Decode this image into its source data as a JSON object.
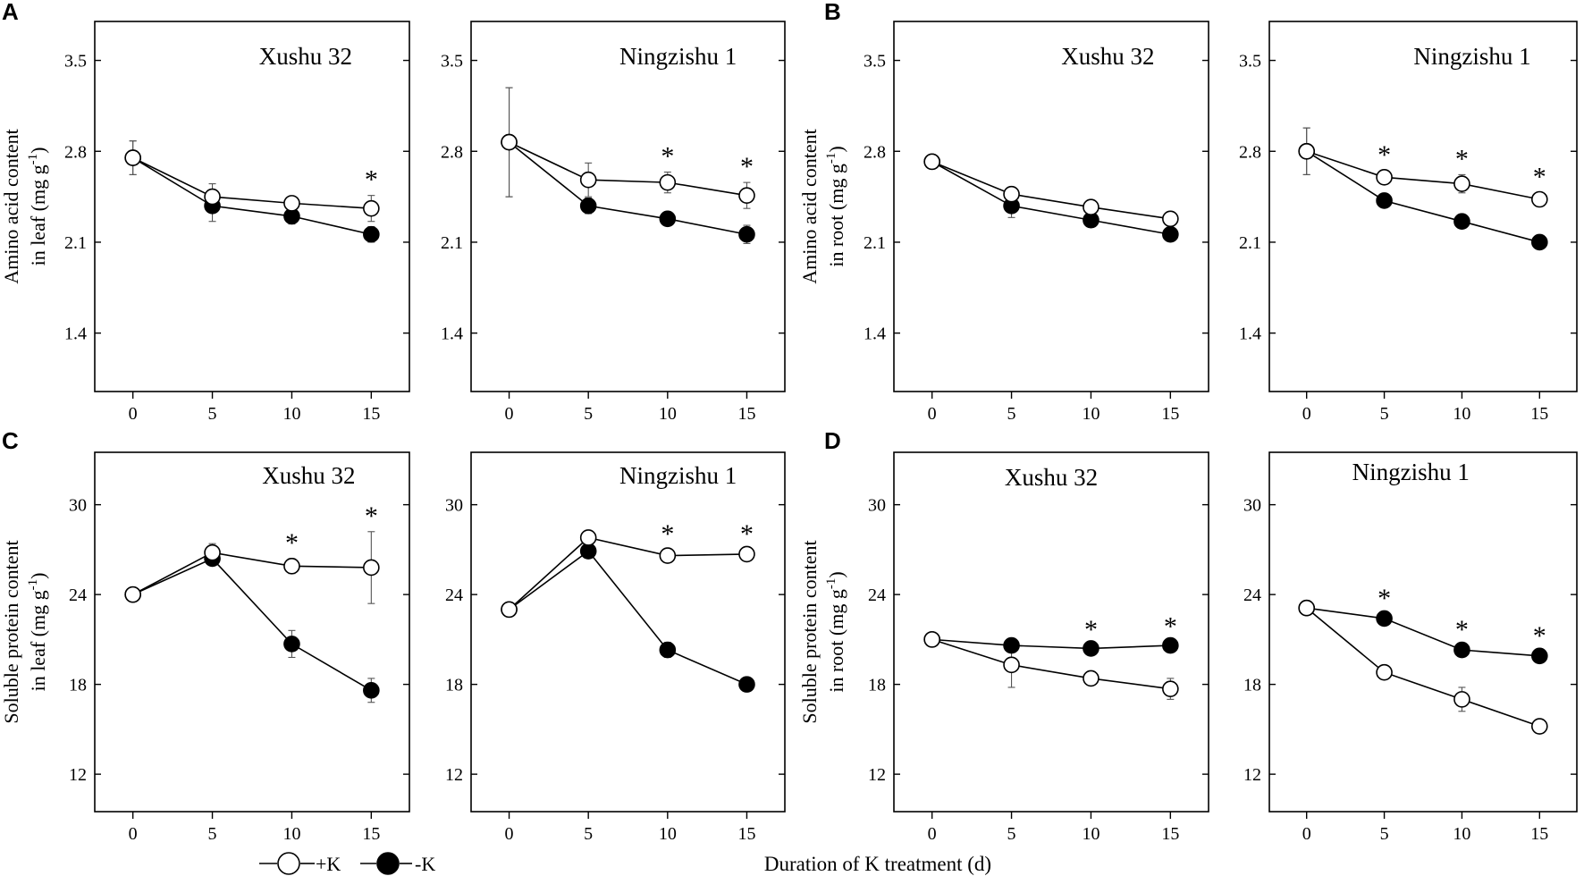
{
  "figure": {
    "panel_letters": [
      "A",
      "B",
      "C",
      "D"
    ],
    "xlabel": "Duration of K treatment (d)",
    "legend": {
      "plus_k": "+K",
      "minus_k": "-K"
    }
  },
  "chart_data": [
    {
      "type": "line",
      "panel": "A",
      "title": "Xushu 32",
      "ylabel_line1": "Amino acid content",
      "ylabel_line2": "in leaf (mg g",
      "ylabel_sup": "-1",
      "ylabel_end": ")",
      "x": [
        0,
        5,
        10,
        15
      ],
      "xlim": [
        -2.4,
        17.4
      ],
      "ylim": [
        0.95,
        3.8
      ],
      "xticks": [
        0,
        5,
        10,
        15
      ],
      "yticks": [
        1.4,
        2.1,
        2.8,
        3.5
      ],
      "ytick_labels": [
        "1.4",
        "2.1",
        "2.8",
        "3.5"
      ],
      "series": [
        {
          "name": "+K",
          "marker": "open",
          "values": [
            2.75,
            2.45,
            2.4,
            2.36
          ],
          "errors": [
            0.13,
            0.1,
            0.04,
            0.1
          ]
        },
        {
          "name": "-K",
          "marker": "filled",
          "values": [
            2.75,
            2.38,
            2.3,
            2.16
          ],
          "errors": [
            0.13,
            0.12,
            0.06,
            0.06
          ]
        }
      ],
      "significance": [
        "",
        "",
        "",
        "*"
      ]
    },
    {
      "type": "line",
      "panel": "A",
      "title": "Ningzishu 1",
      "ylabel_line1": "",
      "ylabel_line2": "",
      "ylabel_sup": "",
      "ylabel_end": "",
      "x": [
        0,
        5,
        10,
        15
      ],
      "xlim": [
        -2.4,
        17.4
      ],
      "ylim": [
        0.95,
        3.8
      ],
      "xticks": [
        0,
        5,
        10,
        15
      ],
      "yticks": [
        1.4,
        2.1,
        2.8,
        3.5
      ],
      "ytick_labels": [
        "1.4",
        "2.1",
        "2.8",
        "3.5"
      ],
      "series": [
        {
          "name": "+K",
          "marker": "open",
          "values": [
            2.87,
            2.58,
            2.56,
            2.46
          ],
          "errors": [
            0.42,
            0.13,
            0.08,
            0.1
          ]
        },
        {
          "name": "-K",
          "marker": "filled",
          "values": [
            2.87,
            2.38,
            2.28,
            2.16
          ],
          "errors": [
            0.42,
            0.06,
            0.04,
            0.07
          ]
        }
      ],
      "significance": [
        "",
        "",
        "*",
        "*"
      ]
    },
    {
      "type": "line",
      "panel": "B",
      "title": "Xushu 32",
      "ylabel_line1": "Amino acid content",
      "ylabel_line2": "in root (mg g",
      "ylabel_sup": "-1",
      "ylabel_end": ")",
      "x": [
        0,
        5,
        10,
        15
      ],
      "xlim": [
        -2.4,
        17.4
      ],
      "ylim": [
        0.95,
        3.8
      ],
      "xticks": [
        0,
        5,
        10,
        15
      ],
      "yticks": [
        1.4,
        2.1,
        2.8,
        3.5
      ],
      "ytick_labels": [
        "1.4",
        "2.1",
        "2.8",
        "3.5"
      ],
      "series": [
        {
          "name": "+K",
          "marker": "open",
          "values": [
            2.72,
            2.47,
            2.37,
            2.28
          ],
          "errors": [
            0.03,
            0.05,
            0.04,
            0.04
          ]
        },
        {
          "name": "-K",
          "marker": "filled",
          "values": [
            2.72,
            2.38,
            2.27,
            2.16
          ],
          "errors": [
            0.03,
            0.09,
            0.05,
            0.05
          ]
        }
      ],
      "significance": [
        "",
        "",
        "",
        ""
      ]
    },
    {
      "type": "line",
      "panel": "B",
      "title": "Ningzishu 1",
      "ylabel_line1": "",
      "ylabel_line2": "",
      "ylabel_sup": "",
      "ylabel_end": "",
      "x": [
        0,
        5,
        10,
        15
      ],
      "xlim": [
        -2.4,
        17.4
      ],
      "ylim": [
        0.95,
        3.8
      ],
      "xticks": [
        0,
        5,
        10,
        15
      ],
      "yticks": [
        1.4,
        2.1,
        2.8,
        3.5
      ],
      "ytick_labels": [
        "1.4",
        "2.1",
        "2.8",
        "3.5"
      ],
      "series": [
        {
          "name": "+K",
          "marker": "open",
          "values": [
            2.8,
            2.6,
            2.55,
            2.43
          ],
          "errors": [
            0.18,
            0.05,
            0.07,
            0.05
          ]
        },
        {
          "name": "-K",
          "marker": "filled",
          "values": [
            2.8,
            2.42,
            2.26,
            2.1
          ],
          "errors": [
            0.18,
            0.04,
            0.05,
            0.04
          ]
        }
      ],
      "significance": [
        "",
        "*",
        "*",
        "*"
      ]
    },
    {
      "type": "line",
      "panel": "C",
      "title": "Xushu 32",
      "ylabel_line1": "Soluble protein content",
      "ylabel_line2": "in leaf (mg g",
      "ylabel_sup": "-1",
      "ylabel_end": ")",
      "x": [
        0,
        5,
        10,
        15
      ],
      "xlim": [
        -2.4,
        17.4
      ],
      "ylim": [
        9.5,
        33.5
      ],
      "xticks": [
        0,
        5,
        10,
        15
      ],
      "yticks": [
        12,
        18,
        24,
        30
      ],
      "ytick_labels": [
        "12",
        "18",
        "24",
        "30"
      ],
      "series": [
        {
          "name": "+K",
          "marker": "open",
          "values": [
            24.0,
            26.8,
            25.9,
            25.8
          ],
          "errors": [
            0.2,
            0.6,
            0.5,
            2.4
          ]
        },
        {
          "name": "-K",
          "marker": "filled",
          "values": [
            24.0,
            26.4,
            20.7,
            17.6
          ],
          "errors": [
            0.2,
            0.4,
            0.9,
            0.8
          ]
        }
      ],
      "significance": [
        "",
        "",
        "*",
        "*"
      ]
    },
    {
      "type": "line",
      "panel": "C",
      "title": "Ningzishu 1",
      "ylabel_line1": "",
      "ylabel_line2": "",
      "ylabel_sup": "",
      "ylabel_end": "",
      "x": [
        0,
        5,
        10,
        15
      ],
      "xlim": [
        -2.4,
        17.4
      ],
      "ylim": [
        9.5,
        33.5
      ],
      "xticks": [
        0,
        5,
        10,
        15
      ],
      "yticks": [
        12,
        18,
        24,
        30
      ],
      "ytick_labels": [
        "12",
        "18",
        "24",
        "30"
      ],
      "series": [
        {
          "name": "+K",
          "marker": "open",
          "values": [
            23.0,
            27.8,
            26.6,
            26.7
          ],
          "errors": [
            0.2,
            0.4,
            0.4,
            0.3
          ]
        },
        {
          "name": "-K",
          "marker": "filled",
          "values": [
            23.0,
            26.9,
            20.3,
            18.0
          ],
          "errors": [
            0.2,
            0.3,
            0.5,
            0.3
          ]
        }
      ],
      "significance": [
        "",
        "",
        "*",
        "*"
      ]
    },
    {
      "type": "line",
      "panel": "D",
      "title": "Xushu 32",
      "ylabel_line1": "Soluble protein content",
      "ylabel_line2": "in root (mg g",
      "ylabel_sup": "-1",
      "ylabel_end": ")",
      "x": [
        0,
        5,
        10,
        15
      ],
      "xlim": [
        -2.4,
        17.4
      ],
      "ylim": [
        9.5,
        33.5
      ],
      "xticks": [
        0,
        5,
        10,
        15
      ],
      "yticks": [
        12,
        18,
        24,
        30
      ],
      "ytick_labels": [
        "12",
        "18",
        "24",
        "30"
      ],
      "series": [
        {
          "name": "+K",
          "marker": "open",
          "values": [
            21.0,
            19.3,
            18.4,
            17.7
          ],
          "errors": [
            0.2,
            1.5,
            0.4,
            0.7
          ]
        },
        {
          "name": "-K",
          "marker": "filled",
          "values": [
            21.0,
            20.6,
            20.4,
            20.6
          ],
          "errors": [
            0.2,
            0.2,
            0.2,
            0.2
          ]
        }
      ],
      "significance": [
        "",
        "",
        "*",
        "*"
      ]
    },
    {
      "type": "line",
      "panel": "D",
      "title": "Ningzishu 1",
      "ylabel_line1": "",
      "ylabel_line2": "",
      "ylabel_sup": "",
      "ylabel_end": "",
      "x": [
        0,
        5,
        10,
        15
      ],
      "xlim": [
        -2.4,
        17.4
      ],
      "ylim": [
        9.5,
        33.5
      ],
      "xticks": [
        0,
        5,
        10,
        15
      ],
      "yticks": [
        12,
        18,
        24,
        30
      ],
      "ytick_labels": [
        "12",
        "18",
        "24",
        "30"
      ],
      "series": [
        {
          "name": "+K",
          "marker": "open",
          "values": [
            23.1,
            18.8,
            17.0,
            15.2
          ],
          "errors": [
            0.2,
            0.4,
            0.8,
            0.4
          ]
        },
        {
          "name": "-K",
          "marker": "filled",
          "values": [
            23.1,
            22.4,
            20.3,
            19.9
          ],
          "errors": [
            0.2,
            0.3,
            0.3,
            0.3
          ]
        }
      ],
      "significance": [
        "",
        "*",
        "*",
        "*"
      ]
    }
  ]
}
